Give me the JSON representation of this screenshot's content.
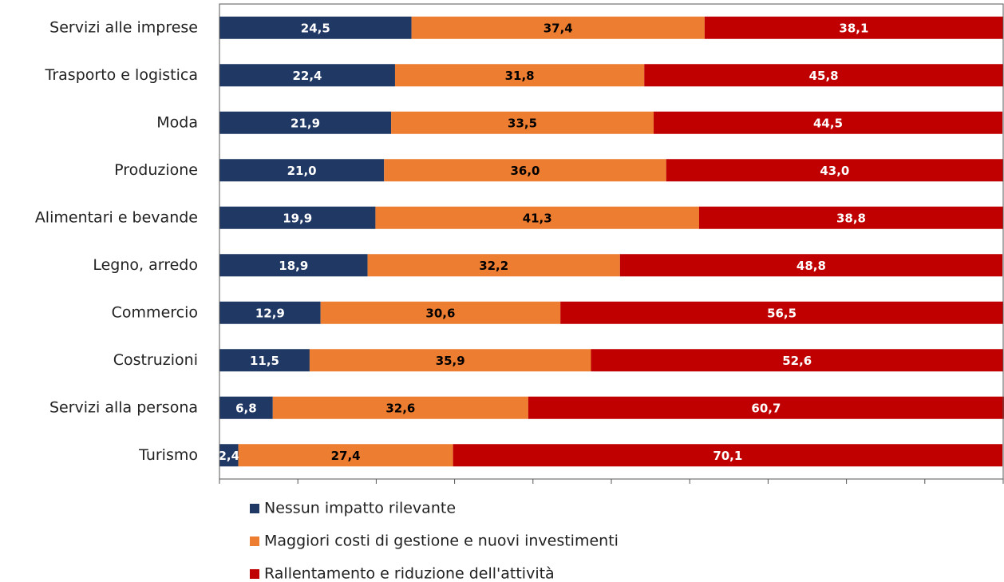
{
  "chart_data": {
    "type": "stacked-bar-horizontal",
    "categories": [
      "Servizi alle imprese",
      "Trasporto e logistica",
      "Moda",
      "Produzione",
      "Alimentari e bevande",
      "Legno, arredo",
      "Commercio",
      "Costruzioni",
      "Servizi alla persona",
      "Turismo"
    ],
    "series": [
      {
        "name": "Nessun impatto rilevante",
        "color": "#203864",
        "values": [
          24.5,
          22.4,
          21.9,
          21.0,
          19.9,
          18.9,
          12.9,
          11.5,
          6.8,
          2.4
        ],
        "value_labels": [
          "24,5",
          "22,4",
          "21,9",
          "21,0",
          "19,9",
          "18,9",
          "12,9",
          "11,5",
          "6,8",
          "2,4"
        ]
      },
      {
        "name": "Maggiori costi di gestione e nuovi investimenti",
        "color": "#ed7d31",
        "values": [
          37.4,
          31.8,
          33.5,
          36.0,
          41.3,
          32.2,
          30.6,
          35.9,
          32.6,
          27.4
        ],
        "value_labels": [
          "37,4",
          "31,8",
          "33,5",
          "36,0",
          "41,3",
          "32,2",
          "30,6",
          "35,9",
          "32,6",
          "27,4"
        ]
      },
      {
        "name": "Rallentamento e riduzione dell'attività",
        "color": "#c00000",
        "values": [
          38.1,
          45.8,
          44.5,
          43.0,
          38.8,
          48.8,
          56.5,
          52.6,
          60.7,
          70.1
        ],
        "value_labels": [
          "38,1",
          "45,8",
          "44,5",
          "43,0",
          "38,8",
          "48,8",
          "56,5",
          "52,6",
          "60,7",
          "70,1"
        ]
      }
    ],
    "xlim": [
      0,
      100
    ],
    "xticks": [
      0,
      10,
      20,
      30,
      40,
      50,
      60,
      70,
      80,
      90,
      100
    ],
    "legend": "bottom"
  }
}
